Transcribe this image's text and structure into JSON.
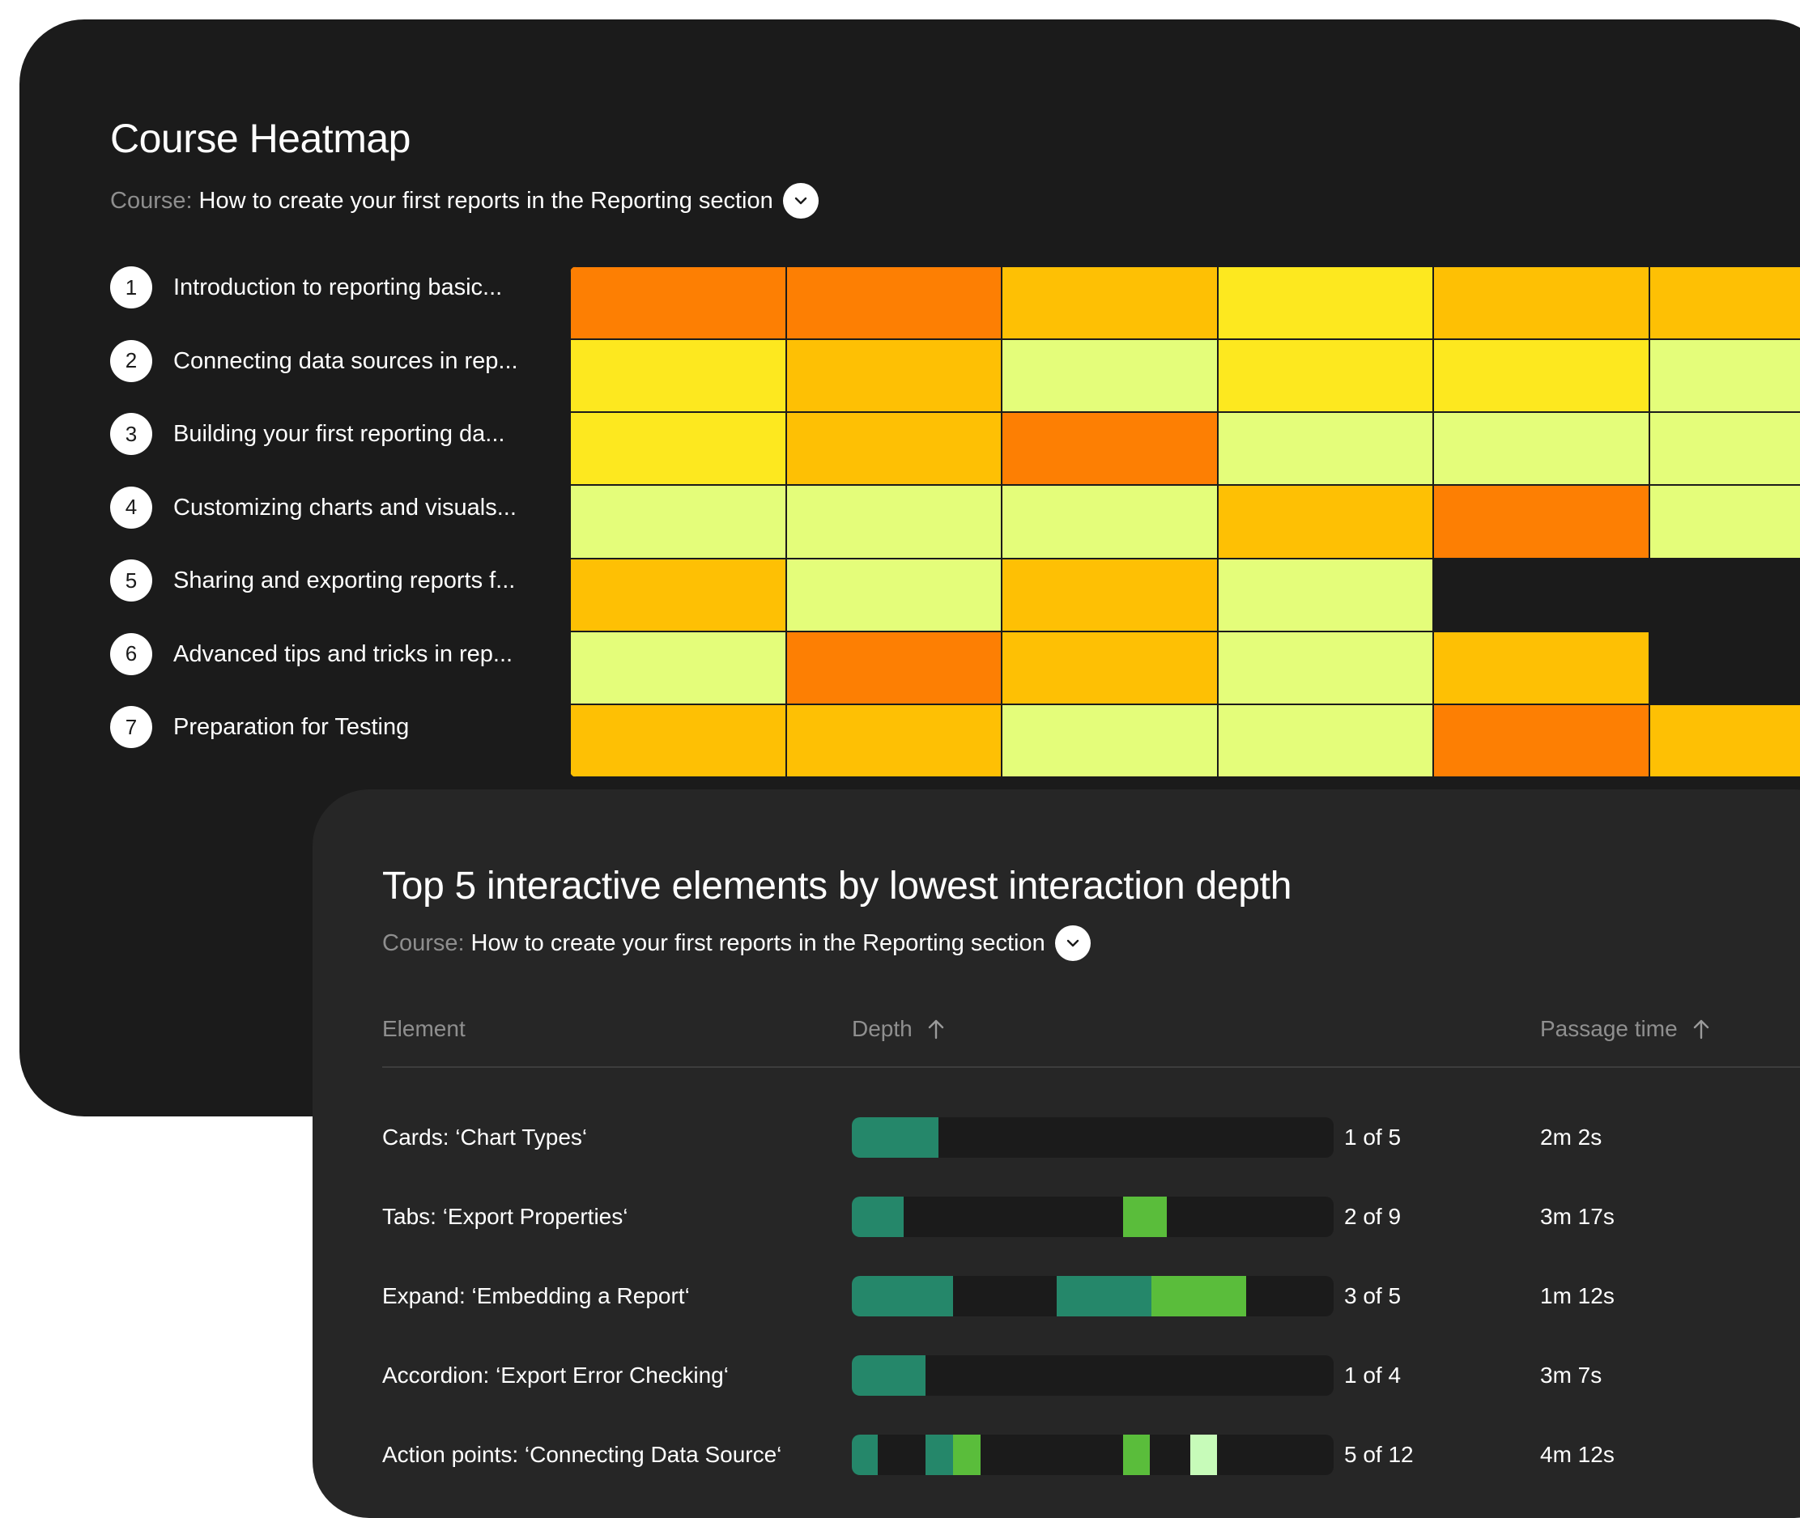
{
  "heatmap_card": {
    "title": "Course Heatmap",
    "course_label": "Course:",
    "course_value": "How to create your first reports in the Reporting section",
    "lessons": [
      {
        "num": "1",
        "label": "Introduction to reporting basic..."
      },
      {
        "num": "2",
        "label": "Connecting data sources in rep..."
      },
      {
        "num": "3",
        "label": "Building your first reporting da..."
      },
      {
        "num": "4",
        "label": "Customizing charts and visuals..."
      },
      {
        "num": "5",
        "label": "Sharing and exporting reports f..."
      },
      {
        "num": "6",
        "label": "Advanced tips and tricks in rep..."
      },
      {
        "num": "7",
        "label": "Preparation for Testing"
      }
    ],
    "levels": {
      "0": "#1b1b1b",
      "1": "#e4fd7a",
      "2": "#fde81f",
      "3": "#fec004",
      "4": "#fd7f03"
    },
    "grid": [
      [
        4,
        4,
        3,
        2,
        3,
        3
      ],
      [
        2,
        3,
        1,
        2,
        2,
        1
      ],
      [
        2,
        3,
        4,
        1,
        1,
        1
      ],
      [
        1,
        1,
        1,
        3,
        4,
        1
      ],
      [
        3,
        1,
        3,
        1,
        0,
        0
      ],
      [
        1,
        4,
        3,
        1,
        3,
        0
      ],
      [
        3,
        3,
        1,
        1,
        4,
        3
      ]
    ]
  },
  "table_card": {
    "title": "Top 5 interactive elements by lowest interaction depth",
    "course_label": "Course:",
    "course_value": "How to create your first reports in the Reporting section",
    "columns": {
      "element": "Element",
      "depth": "Depth",
      "passage_time": "Passage time"
    },
    "segment_colors": {
      "teal": "#25876a",
      "green": "#5abd3b",
      "pale": "#c7fbb9"
    },
    "rows": [
      {
        "element": "Cards: ‘Chart Types‘",
        "depth": "1 of 5",
        "passage_time": "2m 2s",
        "segments": [
          {
            "from": 0,
            "to": 0.18,
            "color": "teal"
          }
        ]
      },
      {
        "element": "Tabs: ‘Export Properties‘",
        "depth": "2 of 9",
        "passage_time": "3m 17s",
        "segments": [
          {
            "from": 0,
            "to": 0.107,
            "color": "teal"
          },
          {
            "from": 0.563,
            "to": 0.654,
            "color": "green"
          }
        ]
      },
      {
        "element": "Expand: ‘Embedding a Report‘",
        "depth": "3 of 5",
        "passage_time": "1m 12s",
        "segments": [
          {
            "from": 0,
            "to": 0.21,
            "color": "teal"
          },
          {
            "from": 0.425,
            "to": 0.622,
            "color": "teal"
          },
          {
            "from": 0.622,
            "to": 0.818,
            "color": "green"
          }
        ]
      },
      {
        "element": "Accordion: ‘Export Error Checking‘",
        "depth": "1 of 4",
        "passage_time": "3m 7s",
        "segments": [
          {
            "from": 0,
            "to": 0.153,
            "color": "teal"
          }
        ]
      },
      {
        "element": "Action points: ‘Connecting Data Source‘",
        "depth": "5 of 12",
        "passage_time": "4m 12s",
        "segments": [
          {
            "from": 0,
            "to": 0.053,
            "color": "teal"
          },
          {
            "from": 0.153,
            "to": 0.21,
            "color": "teal"
          },
          {
            "from": 0.21,
            "to": 0.267,
            "color": "green"
          },
          {
            "from": 0.563,
            "to": 0.618,
            "color": "green"
          },
          {
            "from": 0.703,
            "to": 0.758,
            "color": "pale"
          }
        ]
      }
    ]
  }
}
